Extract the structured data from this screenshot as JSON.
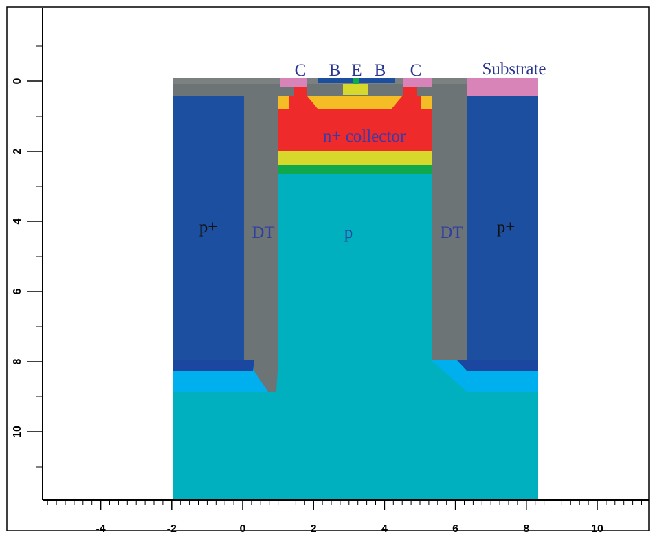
{
  "labels": {
    "contact_left": "C",
    "base_left": "B",
    "emitter": "E",
    "base_right": "B",
    "contact_right": "C",
    "substrate": "Substrate",
    "collector": "n+ collector",
    "pplus_left": "p+",
    "dt_left": "DT",
    "p_region": "p",
    "dt_right": "DT",
    "pplus_right": "p+"
  },
  "axes": {
    "xticks": [
      -4,
      -2,
      0,
      2,
      4,
      6,
      8,
      10
    ],
    "yticks": [
      0,
      2,
      4,
      6,
      8,
      10
    ]
  }
}
